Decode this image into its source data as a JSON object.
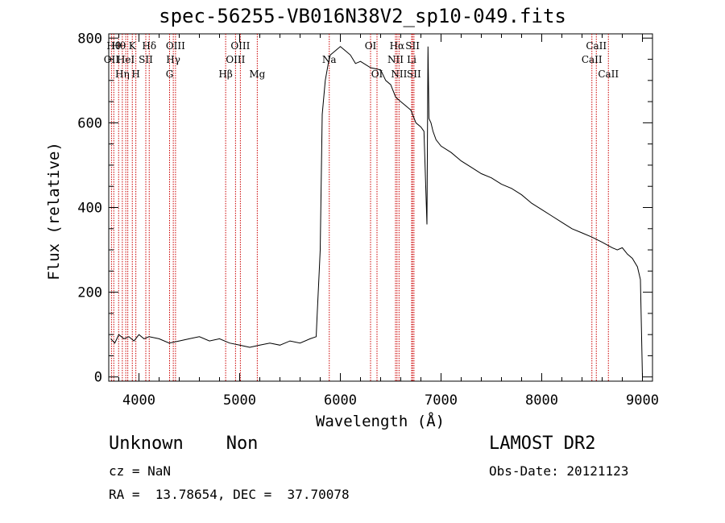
{
  "title": "spec-56255-VB016N38V2_sp10-049.fits",
  "footer": {
    "classification": "Unknown    Non",
    "cz": "cz = NaN",
    "radec": "RA =  13.78654, DEC =  37.70078",
    "survey": "LAMOST DR2",
    "obs_date": "Obs-Date: 20121123"
  },
  "colors": {
    "line": "#000000",
    "marker": "#cc0000",
    "background": "#ffffff"
  },
  "chart_data": {
    "type": "line",
    "title": "spec-56255-VB016N38V2_sp10-049.fits",
    "xlabel": "Wavelength (Å)",
    "ylabel": "Flux (relative)",
    "xlim": [
      3700,
      9100
    ],
    "ylim": [
      -10,
      810
    ],
    "xticks": [
      4000,
      5000,
      6000,
      7000,
      8000,
      9000
    ],
    "yticks": [
      0,
      200,
      400,
      600,
      800
    ],
    "grid": false,
    "legend": "none",
    "series": [
      {
        "x": [
          3720,
          3760,
          3800,
          3850,
          3900,
          3950,
          4000,
          4050,
          4100,
          4200,
          4300,
          4400,
          4500,
          4600,
          4700,
          4800,
          4900,
          5000,
          5100,
          5200,
          5300,
          5400,
          5500,
          5600,
          5700,
          5760,
          5770,
          5790,
          5800,
          5820,
          5850,
          5880,
          5900,
          5950,
          6000,
          6050,
          6100,
          6150,
          6200,
          6300,
          6400,
          6450,
          6500,
          6550,
          6600,
          6650,
          6700,
          6750,
          6800,
          6830,
          6860,
          6870,
          6880,
          6900,
          6920,
          6950,
          7000,
          7100,
          7200,
          7300,
          7400,
          7500,
          7600,
          7700,
          7800,
          7900,
          8000,
          8100,
          8200,
          8300,
          8400,
          8500,
          8600,
          8700,
          8750,
          8800,
          8850,
          8900,
          8950,
          8980,
          9000
        ],
        "y": [
          90,
          80,
          100,
          90,
          95,
          85,
          100,
          90,
          95,
          90,
          80,
          85,
          90,
          95,
          85,
          90,
          80,
          75,
          70,
          75,
          80,
          75,
          85,
          80,
          90,
          95,
          150,
          250,
          300,
          620,
          700,
          740,
          760,
          770,
          780,
          770,
          760,
          740,
          745,
          730,
          725,
          700,
          690,
          660,
          650,
          640,
          630,
          600,
          590,
          580,
          360,
          780,
          610,
          600,
          580,
          560,
          545,
          530,
          510,
          495,
          480,
          470,
          455,
          445,
          430,
          410,
          395,
          380,
          365,
          350,
          340,
          330,
          318,
          305,
          300,
          305,
          290,
          280,
          260,
          230,
          0
        ]
      }
    ],
    "lines": [
      {
        "wave": 3727,
        "label": "OII",
        "row": 2
      },
      {
        "wave": 3750,
        "label": "Hθ",
        "row": 1
      },
      {
        "wave": 3798,
        "label": "Hθ",
        "row": 1
      },
      {
        "wave": 3835,
        "label": "Hη",
        "row": 3
      },
      {
        "wave": 3869,
        "label": "HeI",
        "row": 2
      },
      {
        "wave": 3889,
        "label": "",
        "row": 0
      },
      {
        "wave": 3934,
        "label": "K",
        "row": 1
      },
      {
        "wave": 3969,
        "label": "H",
        "row": 3
      },
      {
        "wave": 4068,
        "label": "SII",
        "row": 2
      },
      {
        "wave": 4102,
        "label": "Hδ",
        "row": 1
      },
      {
        "wave": 4304,
        "label": "G",
        "row": 3
      },
      {
        "wave": 4341,
        "label": "Hγ",
        "row": 2
      },
      {
        "wave": 4363,
        "label": "OIII",
        "row": 1
      },
      {
        "wave": 4861,
        "label": "Hβ",
        "row": 3
      },
      {
        "wave": 4959,
        "label": "OIII",
        "row": 2
      },
      {
        "wave": 5007,
        "label": "OIII",
        "row": 1
      },
      {
        "wave": 5175,
        "label": "Mg",
        "row": 3
      },
      {
        "wave": 5890,
        "label": "Na",
        "row": 2
      },
      {
        "wave": 6300,
        "label": "OI",
        "row": 1
      },
      {
        "wave": 6364,
        "label": "OI",
        "row": 3
      },
      {
        "wave": 6548,
        "label": "NII",
        "row": 2
      },
      {
        "wave": 6563,
        "label": "Hα",
        "row": 1
      },
      {
        "wave": 6583,
        "label": "NII",
        "row": 3
      },
      {
        "wave": 6708,
        "label": "Li",
        "row": 2
      },
      {
        "wave": 6717,
        "label": "SII",
        "row": 1
      },
      {
        "wave": 6731,
        "label": "SII",
        "row": 3
      },
      {
        "wave": 8498,
        "label": "CaII",
        "row": 2
      },
      {
        "wave": 8542,
        "label": "CaII",
        "row": 1
      },
      {
        "wave": 8662,
        "label": "CaII",
        "row": 3
      }
    ]
  }
}
